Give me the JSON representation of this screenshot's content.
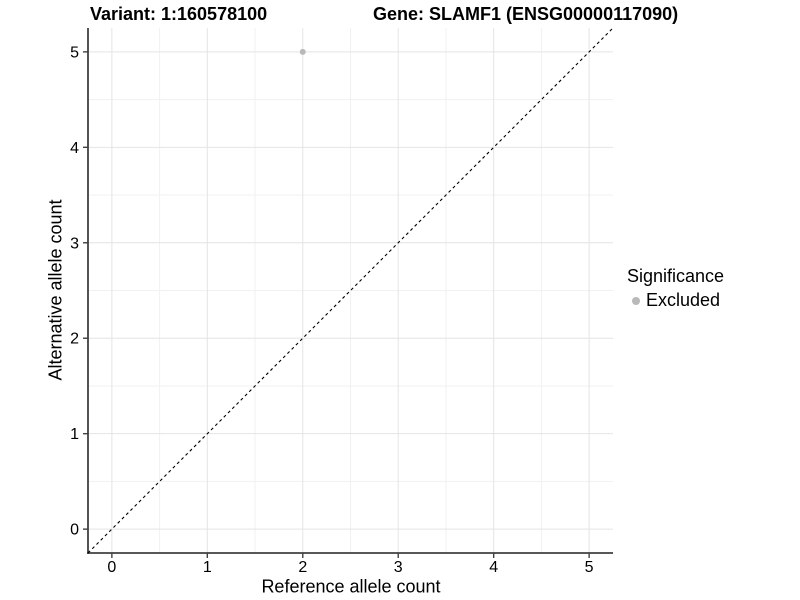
{
  "header": {
    "variant_title": "Variant: 1:160578100",
    "gene_title": "Gene: SLAMF1 (ENSG00000117090)"
  },
  "chart_data": {
    "type": "scatter",
    "title_left": "Variant: 1:160578100",
    "title_right": "Gene: SLAMF1 (ENSG00000117090)",
    "xlabel": "Reference allele count",
    "ylabel": "Alternative allele count",
    "xlim": [
      -0.25,
      5.25
    ],
    "ylim": [
      -0.25,
      5.25
    ],
    "xticks": [
      0,
      1,
      2,
      3,
      4,
      5
    ],
    "yticks": [
      0,
      1,
      2,
      3,
      4,
      5
    ],
    "grid": {
      "show_major": true,
      "show_minor": true,
      "major_color": "#e4e4e4",
      "minor_color": "#f1f1f1"
    },
    "axis_color": "#404040",
    "tick_label_color": "#000000",
    "reference_line": {
      "description": "identity line y = x",
      "dashed": true,
      "color": "#000000"
    },
    "series": [
      {
        "name": "Excluded",
        "color": "#b9b9b9",
        "points": [
          {
            "x": 2,
            "y": 5
          }
        ]
      }
    ],
    "legend": {
      "title": "Significance",
      "position": "right",
      "items": [
        {
          "label": "Excluded",
          "color": "#b9b9b9"
        }
      ]
    }
  }
}
